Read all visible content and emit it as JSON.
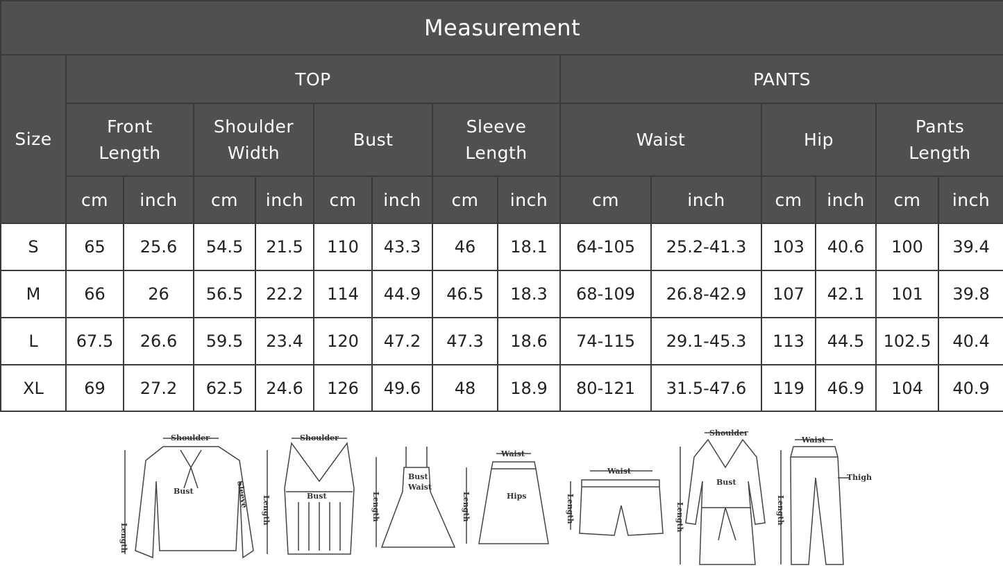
{
  "title": "Measurement",
  "size_header": "Size",
  "groups": {
    "top": "TOP",
    "pants": "PANTS"
  },
  "columns": [
    {
      "label": "Front Length",
      "line1": "Front",
      "line2": "Length"
    },
    {
      "label": "Shoulder Width",
      "line1": "Shoulder",
      "line2": "Width"
    },
    {
      "label": "Bust",
      "line1": "Bust",
      "line2": ""
    },
    {
      "label": "Sleeve Length",
      "line1": "Sleeve",
      "line2": "Length"
    },
    {
      "label": "Waist",
      "line1": "Waist",
      "line2": ""
    },
    {
      "label": "Hip",
      "line1": "Hip",
      "line2": ""
    },
    {
      "label": "Pants Length",
      "line1": "Pants",
      "line2": "Length"
    }
  ],
  "units": {
    "cm": "cm",
    "inch": "inch"
  },
  "rows": [
    {
      "size": "S",
      "values": [
        "65",
        "25.6",
        "54.5",
        "21.5",
        "110",
        "43.3",
        "46",
        "18.1",
        "64-105",
        "25.2-41.3",
        "103",
        "40.6",
        "100",
        "39.4"
      ]
    },
    {
      "size": "M",
      "values": [
        "66",
        "26",
        "56.5",
        "22.2",
        "114",
        "44.9",
        "46.5",
        "18.3",
        "68-109",
        "26.8-42.9",
        "107",
        "42.1",
        "101",
        "39.8"
      ]
    },
    {
      "size": "L",
      "values": [
        "67.5",
        "26.6",
        "59.5",
        "23.4",
        "120",
        "47.2",
        "47.3",
        "18.6",
        "74-115",
        "29.1-45.3",
        "113",
        "44.5",
        "102.5",
        "40.4"
      ]
    },
    {
      "size": "XL",
      "values": [
        "69",
        "27.2",
        "62.5",
        "24.6",
        "126",
        "49.6",
        "48",
        "18.9",
        "80-121",
        "31.5-47.6",
        "119",
        "46.9",
        "104",
        "40.9"
      ]
    }
  ],
  "illustration_labels": {
    "shoulder": "Shoulder",
    "bust": "Bust",
    "sleeve": "Sleeve",
    "length": "Length",
    "waist": "Waist",
    "hips": "Hips",
    "thigh": "Thigh"
  },
  "colors": {
    "header_bg": "#505050",
    "header_text": "#ffffff",
    "border": "#3a3a3a"
  }
}
